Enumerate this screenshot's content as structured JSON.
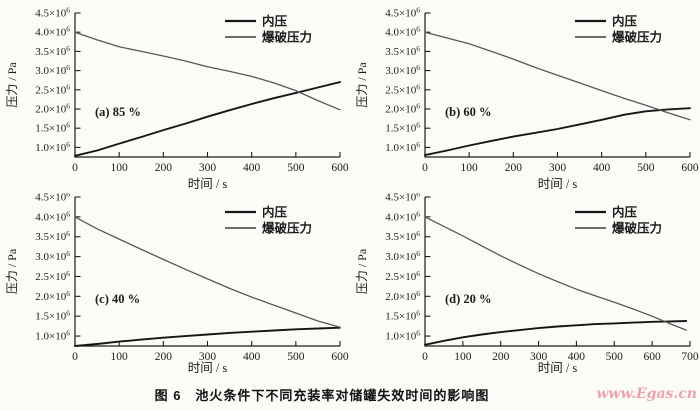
{
  "page": {
    "caption": "图 6　池火条件下不同充装率对储罐失效时间的影响图",
    "watermark": "www.Egas.cn",
    "watermark_color": "#f0a2ac"
  },
  "colors": {
    "axis": "#1c1c1c",
    "internal_pressure_line": "#161616",
    "burst_pressure_line": "#585858"
  },
  "chart_data": [
    {
      "type": "line",
      "panel_label": "(a) 85 %",
      "xlabel": "时间 / s",
      "ylabel": "压力 / Pa",
      "y_unit": "×10^6 Pa",
      "y_exponent": "6",
      "xlim": [
        0,
        600
      ],
      "ylim": [
        0.75,
        4.5
      ],
      "xticks": [
        0,
        100,
        200,
        300,
        400,
        500,
        600
      ],
      "yticks": [
        1.0,
        1.5,
        2.0,
        2.5,
        3.0,
        3.5,
        4.0,
        4.5
      ],
      "grid": false,
      "legend": [
        "内压",
        "爆破压力"
      ],
      "legend_position": "top-right",
      "series": [
        {
          "name": "内压",
          "color": "#161616",
          "width": 1.9,
          "x": [
            0,
            50,
            100,
            150,
            200,
            250,
            300,
            350,
            400,
            450,
            500,
            550,
            600
          ],
          "y": [
            0.78,
            0.92,
            1.1,
            1.27,
            1.45,
            1.62,
            1.8,
            1.97,
            2.13,
            2.28,
            2.42,
            2.56,
            2.7
          ]
        },
        {
          "name": "爆破压力",
          "color": "#585858",
          "width": 1.3,
          "x": [
            0,
            50,
            100,
            150,
            200,
            250,
            300,
            350,
            400,
            450,
            500,
            550,
            600
          ],
          "y": [
            4.0,
            3.8,
            3.62,
            3.5,
            3.38,
            3.25,
            3.1,
            2.98,
            2.85,
            2.68,
            2.48,
            2.22,
            1.98
          ]
        }
      ]
    },
    {
      "type": "line",
      "panel_label": "(b) 60 %",
      "xlabel": "时间 / s",
      "ylabel": "压力 / Pa",
      "y_unit": "×10^6 Pa",
      "y_exponent": "6",
      "xlim": [
        0,
        600
      ],
      "ylim": [
        0.75,
        4.5
      ],
      "xticks": [
        0,
        100,
        200,
        300,
        400,
        500,
        600
      ],
      "yticks": [
        1.0,
        1.5,
        2.0,
        2.5,
        3.0,
        3.5,
        4.0,
        4.5
      ],
      "grid": false,
      "legend": [
        "内压",
        "爆破压力"
      ],
      "legend_position": "top-right",
      "series": [
        {
          "name": "内压",
          "color": "#161616",
          "width": 1.9,
          "x": [
            0,
            50,
            100,
            150,
            200,
            250,
            300,
            350,
            400,
            450,
            500,
            550,
            600
          ],
          "y": [
            0.8,
            0.92,
            1.05,
            1.17,
            1.28,
            1.38,
            1.48,
            1.6,
            1.72,
            1.85,
            1.94,
            1.99,
            2.02
          ]
        },
        {
          "name": "爆破压力",
          "color": "#585858",
          "width": 1.3,
          "x": [
            0,
            50,
            100,
            150,
            200,
            250,
            300,
            350,
            400,
            450,
            500,
            550,
            600
          ],
          "y": [
            4.0,
            3.85,
            3.7,
            3.5,
            3.3,
            3.08,
            2.88,
            2.68,
            2.48,
            2.28,
            2.1,
            1.9,
            1.72
          ]
        }
      ]
    },
    {
      "type": "line",
      "panel_label": "(c) 40 %",
      "xlabel": "时间 / s",
      "ylabel": "压力 / Pa",
      "y_unit": "×10^6 Pa",
      "y_exponent": "6",
      "xlim": [
        0,
        600
      ],
      "ylim": [
        0.75,
        4.5
      ],
      "xticks": [
        0,
        100,
        200,
        300,
        400,
        500,
        600
      ],
      "yticks": [
        1.0,
        1.5,
        2.0,
        2.5,
        3.0,
        3.5,
        4.0,
        4.5
      ],
      "grid": false,
      "legend": [
        "内压",
        "爆破压力"
      ],
      "legend_position": "top-right",
      "series": [
        {
          "name": "内压",
          "color": "#161616",
          "width": 1.9,
          "x": [
            0,
            50,
            100,
            150,
            200,
            250,
            300,
            350,
            400,
            450,
            500,
            550,
            600
          ],
          "y": [
            0.75,
            0.8,
            0.86,
            0.91,
            0.96,
            1.0,
            1.04,
            1.08,
            1.11,
            1.14,
            1.17,
            1.19,
            1.21
          ]
        },
        {
          "name": "爆破压力",
          "color": "#585858",
          "width": 1.3,
          "x": [
            0,
            50,
            100,
            150,
            200,
            250,
            300,
            350,
            400,
            450,
            500,
            550,
            600
          ],
          "y": [
            4.0,
            3.7,
            3.44,
            3.18,
            2.93,
            2.68,
            2.44,
            2.2,
            1.98,
            1.78,
            1.58,
            1.38,
            1.22
          ]
        }
      ]
    },
    {
      "type": "line",
      "panel_label": "(d) 20 %",
      "xlabel": "时间 / s",
      "ylabel": "压力 / Pa",
      "y_unit": "×10^6 Pa",
      "y_exponent": "6",
      "xlim": [
        0,
        700
      ],
      "ylim": [
        0.75,
        4.5
      ],
      "xticks": [
        0,
        100,
        200,
        300,
        400,
        500,
        600,
        700
      ],
      "yticks": [
        1.0,
        1.5,
        2.0,
        2.5,
        3.0,
        3.5,
        4.0,
        4.5
      ],
      "grid": false,
      "legend": [
        "内压",
        "爆破压力"
      ],
      "legend_position": "top-right",
      "series": [
        {
          "name": "内压",
          "color": "#161616",
          "width": 1.9,
          "x": [
            0,
            50,
            100,
            150,
            200,
            250,
            300,
            350,
            400,
            450,
            500,
            550,
            600,
            650,
            690
          ],
          "y": [
            0.78,
            0.88,
            0.97,
            1.04,
            1.1,
            1.15,
            1.2,
            1.24,
            1.27,
            1.3,
            1.32,
            1.34,
            1.36,
            1.37,
            1.38
          ]
        },
        {
          "name": "爆破压力",
          "color": "#585858",
          "width": 1.3,
          "x": [
            0,
            50,
            100,
            150,
            200,
            250,
            300,
            350,
            400,
            450,
            500,
            550,
            600,
            650,
            690
          ],
          "y": [
            4.0,
            3.76,
            3.52,
            3.27,
            3.02,
            2.79,
            2.57,
            2.37,
            2.18,
            2.01,
            1.85,
            1.68,
            1.5,
            1.3,
            1.15
          ]
        }
      ]
    }
  ]
}
